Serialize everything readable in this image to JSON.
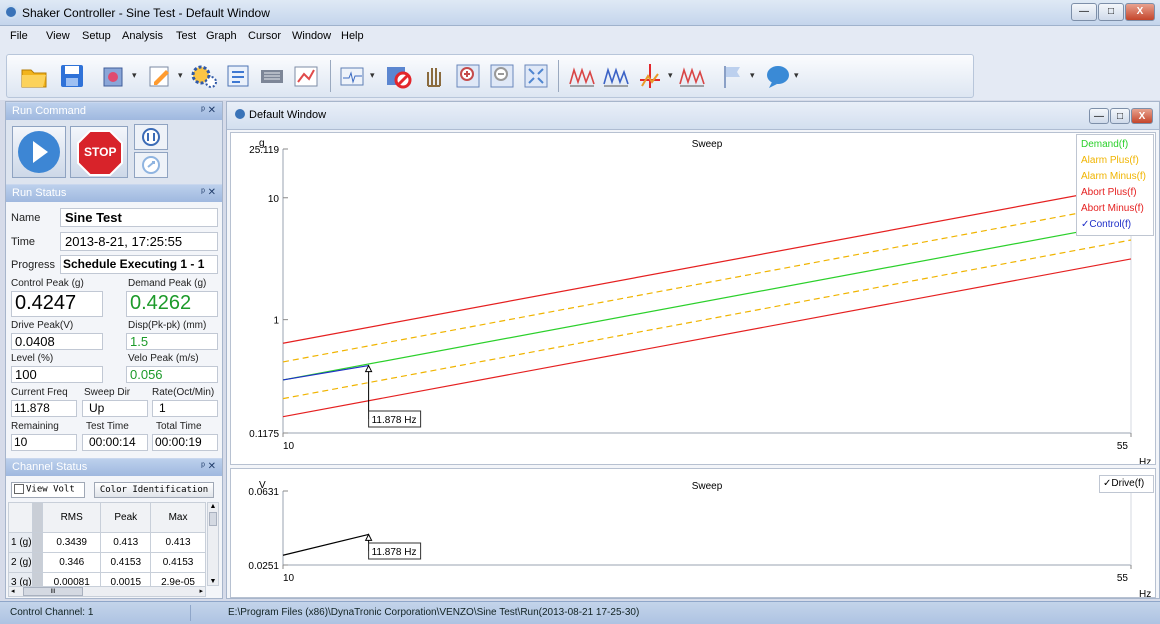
{
  "window": {
    "title": "Shaker Controller - Sine Test - Default Window",
    "min": "—",
    "max": "□",
    "close": "X"
  },
  "menu": [
    "File",
    "View",
    "Setup",
    "Analysis",
    "Test",
    "Graph",
    "Cursor",
    "Window",
    "Help"
  ],
  "toolbar": {
    "icons": [
      "open-folder-icon",
      "save-icon",
      "setup-icon",
      "edit-icon",
      "settings-gears-icon",
      "schedule-icon",
      "hardware-icon",
      "profile-icon",
      "signal-icon",
      "no-record-icon",
      "pan-hand-icon",
      "zoom-in-icon",
      "zoom-out-icon",
      "fit-icon",
      "waveform-icon",
      "waveform-multi-icon",
      "cursor-icon",
      "waveform-peak-icon",
      "flag-icon",
      "comment-icon"
    ]
  },
  "run_command": {
    "title": "Run Command",
    "stop_label": "STOP"
  },
  "run_status": {
    "title": "Run Status",
    "name_label": "Name",
    "name_value": "Sine Test",
    "time_label": "Time",
    "time_value": "2013-8-21, 17:25:55",
    "progress_label": "Progress",
    "progress_value": "Schedule Executing 1 - 1",
    "control_peak_label": "Control Peak (g)",
    "control_peak_value": "0.4247",
    "demand_peak_label": "Demand Peak (g)",
    "demand_peak_value": "0.4262",
    "drive_peak_label": "Drive Peak(V)",
    "drive_peak_value": "0.0408",
    "disp_label": "Disp(Pk-pk) (mm)",
    "disp_value": "1.5",
    "level_label": "Level (%)",
    "level_value": "100",
    "velo_label": "Velo Peak (m/s)",
    "velo_value": "0.056",
    "freq_label": "Current Freq",
    "freq_value": "11.878",
    "sweep_label": "Sweep Dir",
    "sweep_value": "Up",
    "rate_label": "Rate(Oct/Min)",
    "rate_value": "1",
    "remaining_label": "Remaining",
    "remaining_value": "10",
    "test_time_label": "Test Time",
    "test_time_value": "00:00:14",
    "total_time_label": "Total Time",
    "total_time_value": "00:00:19"
  },
  "channel_status": {
    "title": "Channel Status",
    "view_volt": "View Volt",
    "color_id": "Color Identification",
    "headers": [
      "RMS",
      "Peak",
      "Max"
    ],
    "rows": [
      {
        "ch": "1 (g)",
        "rms": "0.3439",
        "peak": "0.413",
        "max": "0.413"
      },
      {
        "ch": "2 (g)",
        "rms": "0.346",
        "peak": "0.4153",
        "max": "0.4153"
      },
      {
        "ch": "3 (g)",
        "rms": "0.00081",
        "peak": "0.0015",
        "max": "2.9e-05"
      }
    ],
    "scroll_mark": "III"
  },
  "default_window": {
    "title": "Default Window"
  },
  "colors": {
    "demand": "#2bd02b",
    "alarm": "#f0b400",
    "abort": "#e52020",
    "control": "#1f2fc8",
    "drive": "#000000"
  },
  "chart_data": [
    {
      "type": "line",
      "title": "Sweep",
      "ylabel": "g",
      "yscale": "log",
      "xlabel": "Hz",
      "xlim": [
        10,
        55
      ],
      "ylim": [
        0.1175,
        25.119
      ],
      "yticks": [
        "25.119",
        "10",
        "1",
        "0.1175"
      ],
      "xticks": [
        "10",
        "55"
      ],
      "series": [
        {
          "name": "Demand(f)",
          "color": "#2bd02b",
          "x": [
            10,
            55
          ],
          "y": [
            0.32,
            6.3
          ]
        },
        {
          "name": "Alarm Plus(f)",
          "color": "#f0b400",
          "x": [
            10,
            55
          ],
          "y": [
            0.45,
            9.0
          ]
        },
        {
          "name": "Alarm Minus(f)",
          "color": "#f0b400",
          "x": [
            10,
            55
          ],
          "y": [
            0.225,
            4.5
          ]
        },
        {
          "name": "Abort Plus(f)",
          "color": "#e52020",
          "x": [
            10,
            55
          ],
          "y": [
            0.64,
            12.6
          ]
        },
        {
          "name": "Abort Minus(f)",
          "color": "#e52020",
          "x": [
            10,
            55
          ],
          "y": [
            0.16,
            3.15
          ]
        },
        {
          "name": "Control(f)",
          "color": "#1f2fc8",
          "x": [
            10,
            11.878
          ],
          "y": [
            0.32,
            0.42
          ]
        }
      ],
      "legend_checked": "Control(f)",
      "cursor": {
        "x": 11.878,
        "label": "11.878 Hz"
      }
    },
    {
      "type": "line",
      "title": "Sweep",
      "ylabel": "V",
      "xlabel": "Hz",
      "xlim": [
        10,
        55
      ],
      "ylim": [
        0.0251,
        0.0631
      ],
      "yticks": [
        "0.0631",
        "0.0251"
      ],
      "xticks": [
        "10",
        "55"
      ],
      "series": [
        {
          "name": "Drive(f)",
          "color": "#000000",
          "x": [
            10,
            11.878
          ],
          "y": [
            0.0301,
            0.0408
          ]
        }
      ],
      "legend_checked": "Drive(f)",
      "cursor": {
        "x": 11.878,
        "label": "11.878 Hz"
      }
    }
  ],
  "statusbar": {
    "left": "Control Channel: 1",
    "right": "E:\\Program Files (x86)\\DynaTronic Corporation\\VENZO\\Sine Test\\Run(2013-08-21 17-25-30)"
  }
}
